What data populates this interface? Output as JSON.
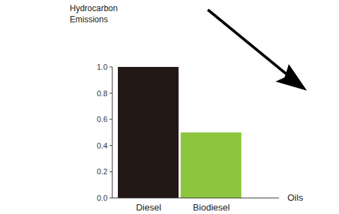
{
  "chart_data": {
    "type": "bar",
    "y_label": "Hydrocarbon Emissions",
    "x_label": "Oils",
    "categories": [
      "Diesel",
      "Biodiesel"
    ],
    "values": [
      1.0,
      0.5
    ],
    "colors": [
      "#231815",
      "#8cc63f"
    ],
    "ylim": [
      0,
      1
    ],
    "yticks": [
      {
        "value": 0,
        "label": "0.0"
      },
      0.2,
      0.4,
      0.6,
      0.8,
      {
        "value": 1,
        "label": "1.0"
      }
    ],
    "grid": false
  }
}
